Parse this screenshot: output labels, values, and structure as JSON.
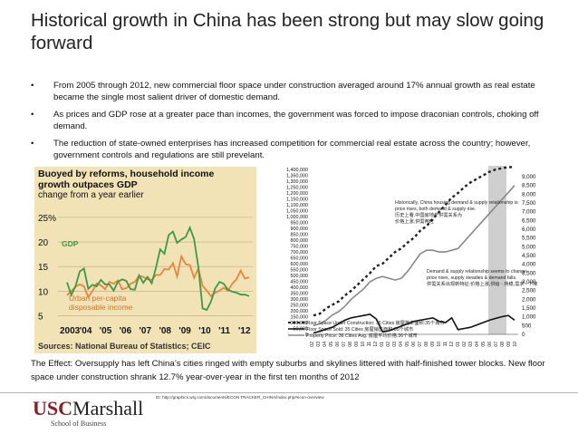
{
  "title": "Historical growth in China has been strong but may slow going forward",
  "bullets": [
    {
      "marker": "•",
      "text": "From 2005 through 2012, new commercial floor space under construction averaged  around 17% annual growth as real estate became the single most salient driver of domestic demand."
    },
    {
      "marker": "•",
      "text": "As prices and GDP rose at a greater pace than incomes, the government was forced to impose draconian controls, choking off demand."
    },
    {
      "marker": "•",
      "text": "The reduction of state-owned enterprises has increased competition for commercial real estate across the country; however, government controls and regulations are still prevelant."
    }
  ],
  "effect_text": "The Effect: Oversupply has left China’s cities ringed with empty suburbs and skylines littered with half-finished tower blocks. New floor space under construction shrank 12.7% year-over-year in the first ten months of 2012",
  "logo": {
    "usc": "USC",
    "marshall": "Marshall",
    "sub": "School of Business"
  },
  "source_url": "ID: http://graphics.wsj.com/documents/ECON TRACKER_CHINA/index.php#econ-overview",
  "colors": {
    "gdp": "#3a9a48",
    "income": "#e8853a",
    "left_bg": "#f1e3b6",
    "highlight": "#c8c8c8"
  },
  "chart_data": [
    {
      "type": "line",
      "title": "Buoyed by reforms, household income growth outpaces GDP",
      "subtitle": "change from a year earlier",
      "source": "Sources: National Bureau of Statistics; CEIC",
      "x_tick_labels": [
        "2003",
        "'04",
        "'05",
        "'06",
        "'07",
        "'08",
        "'09",
        "'10",
        "'11",
        "'12"
      ],
      "y_tick_labels": [
        "25%",
        "20",
        "15",
        "10",
        "5"
      ],
      "ylim": [
        4,
        27
      ],
      "series_labels": {
        "gdp": "GDP",
        "income": "Urban per-capita disposable income"
      },
      "series": [
        {
          "name": "GDP",
          "key": "gdp",
          "values": [
            11.8,
            9.2,
            11.0,
            14.0,
            14.6,
            10.5,
            11.3,
            11.0,
            12.3,
            11.4,
            11.4,
            10.1,
            11.9,
            12.4,
            12.1,
            10.4,
            10.3,
            13.2,
            11.7,
            12.9,
            11.6,
            14.8,
            18.5,
            17.6,
            21.4,
            22.1,
            19.8,
            20.5,
            21.0,
            22.9,
            20.6,
            15.0,
            6.5,
            6.2,
            7.9,
            10.6,
            11.9,
            11.5,
            10.3,
            9.9,
            9.7,
            9.3,
            9.3,
            9.0
          ]
        },
        {
          "name": "Urban per-capita disposable income",
          "key": "income",
          "values": [
            9.2,
            10.0,
            10.9,
            11.4,
            11.0,
            8.8,
            10.0,
            11.6,
            11.2,
            10.4,
            11.9,
            11.5,
            12.2,
            10.4,
            10.6,
            11.5,
            11.9,
            13.1,
            12.9,
            12.4,
            12.3,
            13.3,
            13.3,
            14.5,
            14.4,
            15.7,
            13.0,
            17.1,
            15.5,
            15.3,
            12.7,
            14.6,
            11.1,
            10.1,
            9.0,
            9.7,
            10.1,
            10.7,
            10.1,
            11.5,
            12.4,
            14.2,
            12.6,
            12.8
          ]
        }
      ]
    },
    {
      "type": "line",
      "title": "",
      "y_left_ticks": [
        1400000,
        1350000,
        1300000,
        1250000,
        1200000,
        1150000,
        1100000,
        1050000,
        1000000,
        950000,
        900000,
        850000,
        800000,
        750000,
        700000,
        650000,
        600000,
        550000,
        500000,
        450000,
        400000,
        350000,
        300000,
        250000,
        200000,
        150000,
        100000,
        50000,
        0
      ],
      "y_left_labels": [
        "1,400,000",
        "1,350,000",
        "1,300,000",
        "1,250,000",
        "1,200,000",
        "1,150,000",
        "1,100,000",
        "1,050,000",
        "1,000,000",
        "950,000",
        "900,000",
        "850,000",
        "800,000",
        "750,000",
        "700,000",
        "650,000",
        "600,000",
        "550,000",
        "500,000",
        "450,000",
        "400,000",
        "350,000",
        "300,000",
        "250,000",
        "200,000",
        "150,000",
        "100,000",
        "50,000",
        "0"
      ],
      "y_right_labels": [
        "9,000",
        "8,500",
        "8,000",
        "7,500",
        "7,000",
        "6,500",
        "6,000",
        "5,500",
        "5,000",
        "4,500",
        "4,000",
        "3,500",
        "3,000",
        "2,500",
        "2,000",
        "1,500",
        "1,000",
        "500",
        "0"
      ],
      "x_tick_labels": [
        "02",
        "03",
        "04",
        "05",
        "06",
        "07",
        "08",
        "09",
        "10",
        "11",
        "12",
        "01",
        "02",
        "03",
        "04",
        "05",
        "06",
        "07",
        "08",
        "09",
        "10",
        "11",
        "12",
        "01",
        "02",
        "03",
        "04",
        "05",
        "06",
        "07",
        "08",
        "09",
        "10"
      ],
      "annotations": [
        "Historically, China housing demand & supply relationship is:",
        "price rises, both demand & supply rise.",
        "历史上看,中国房地产供需关系为",
        "价格上涨,供需两旺",
        "Demand & supply relationship seems to change:",
        "price rises, supply steadies & demand falls.",
        "供需关系出现新特征:价格上涨,供给 - 持稳,需求 - 下降"
      ],
      "legend": [
        {
          "key": "construction",
          "label": "Floor Space Under Construction: 35 Cities 房屋施工面积:35个城市"
        },
        {
          "key": "sold",
          "label": "Floor Space Sold: 35 Cities 房屋销售面积:35个城市"
        },
        {
          "key": "price",
          "label": "Property Price: 36 Cities Avg. 房屋平均价格:36个城市"
        }
      ],
      "series": [
        {
          "name": "Floor Space Under Construction: 35 Cities",
          "key": "construction",
          "axis": "left",
          "values": [
            160000,
            175000,
            220000,
            250000,
            280000,
            330000,
            370000,
            420000,
            470000,
            520000,
            580000,
            600000,
            650000,
            700000,
            730000,
            780000,
            820000,
            880000,
            920000,
            980000,
            1040000,
            1100000,
            1160000,
            1200000,
            1250000,
            1290000,
            1320000,
            1350000,
            1380000,
            1400000,
            1410000,
            1420000,
            1420000
          ]
        },
        {
          "name": "Floor Space Sold: 35 Cities",
          "key": "sold",
          "axis": "left",
          "values": [
            12000,
            25000,
            45000,
            60000,
            90000,
            120000,
            140000,
            150000,
            160000,
            170000,
            130000,
            20000,
            30000,
            50000,
            70000,
            90000,
            110000,
            120000,
            130000,
            140000,
            110000,
            100000,
            140000,
            40000,
            50000,
            60000,
            80000,
            100000,
            120000,
            135000,
            150000,
            160000,
            120000
          ]
        },
        {
          "name": "Property Price: 36 Cities Avg.",
          "key": "price",
          "axis": "right",
          "values": [
            500,
            600,
            800,
            1100,
            1300,
            1600,
            2000,
            2300,
            2600,
            3000,
            3200,
            3300,
            3200,
            3100,
            3200,
            3600,
            4100,
            4600,
            4800,
            4800,
            4700,
            4700,
            4800,
            4900,
            5300,
            5700,
            6100,
            6500,
            6900,
            7300,
            7700,
            8100,
            8500
          ]
        }
      ]
    }
  ]
}
